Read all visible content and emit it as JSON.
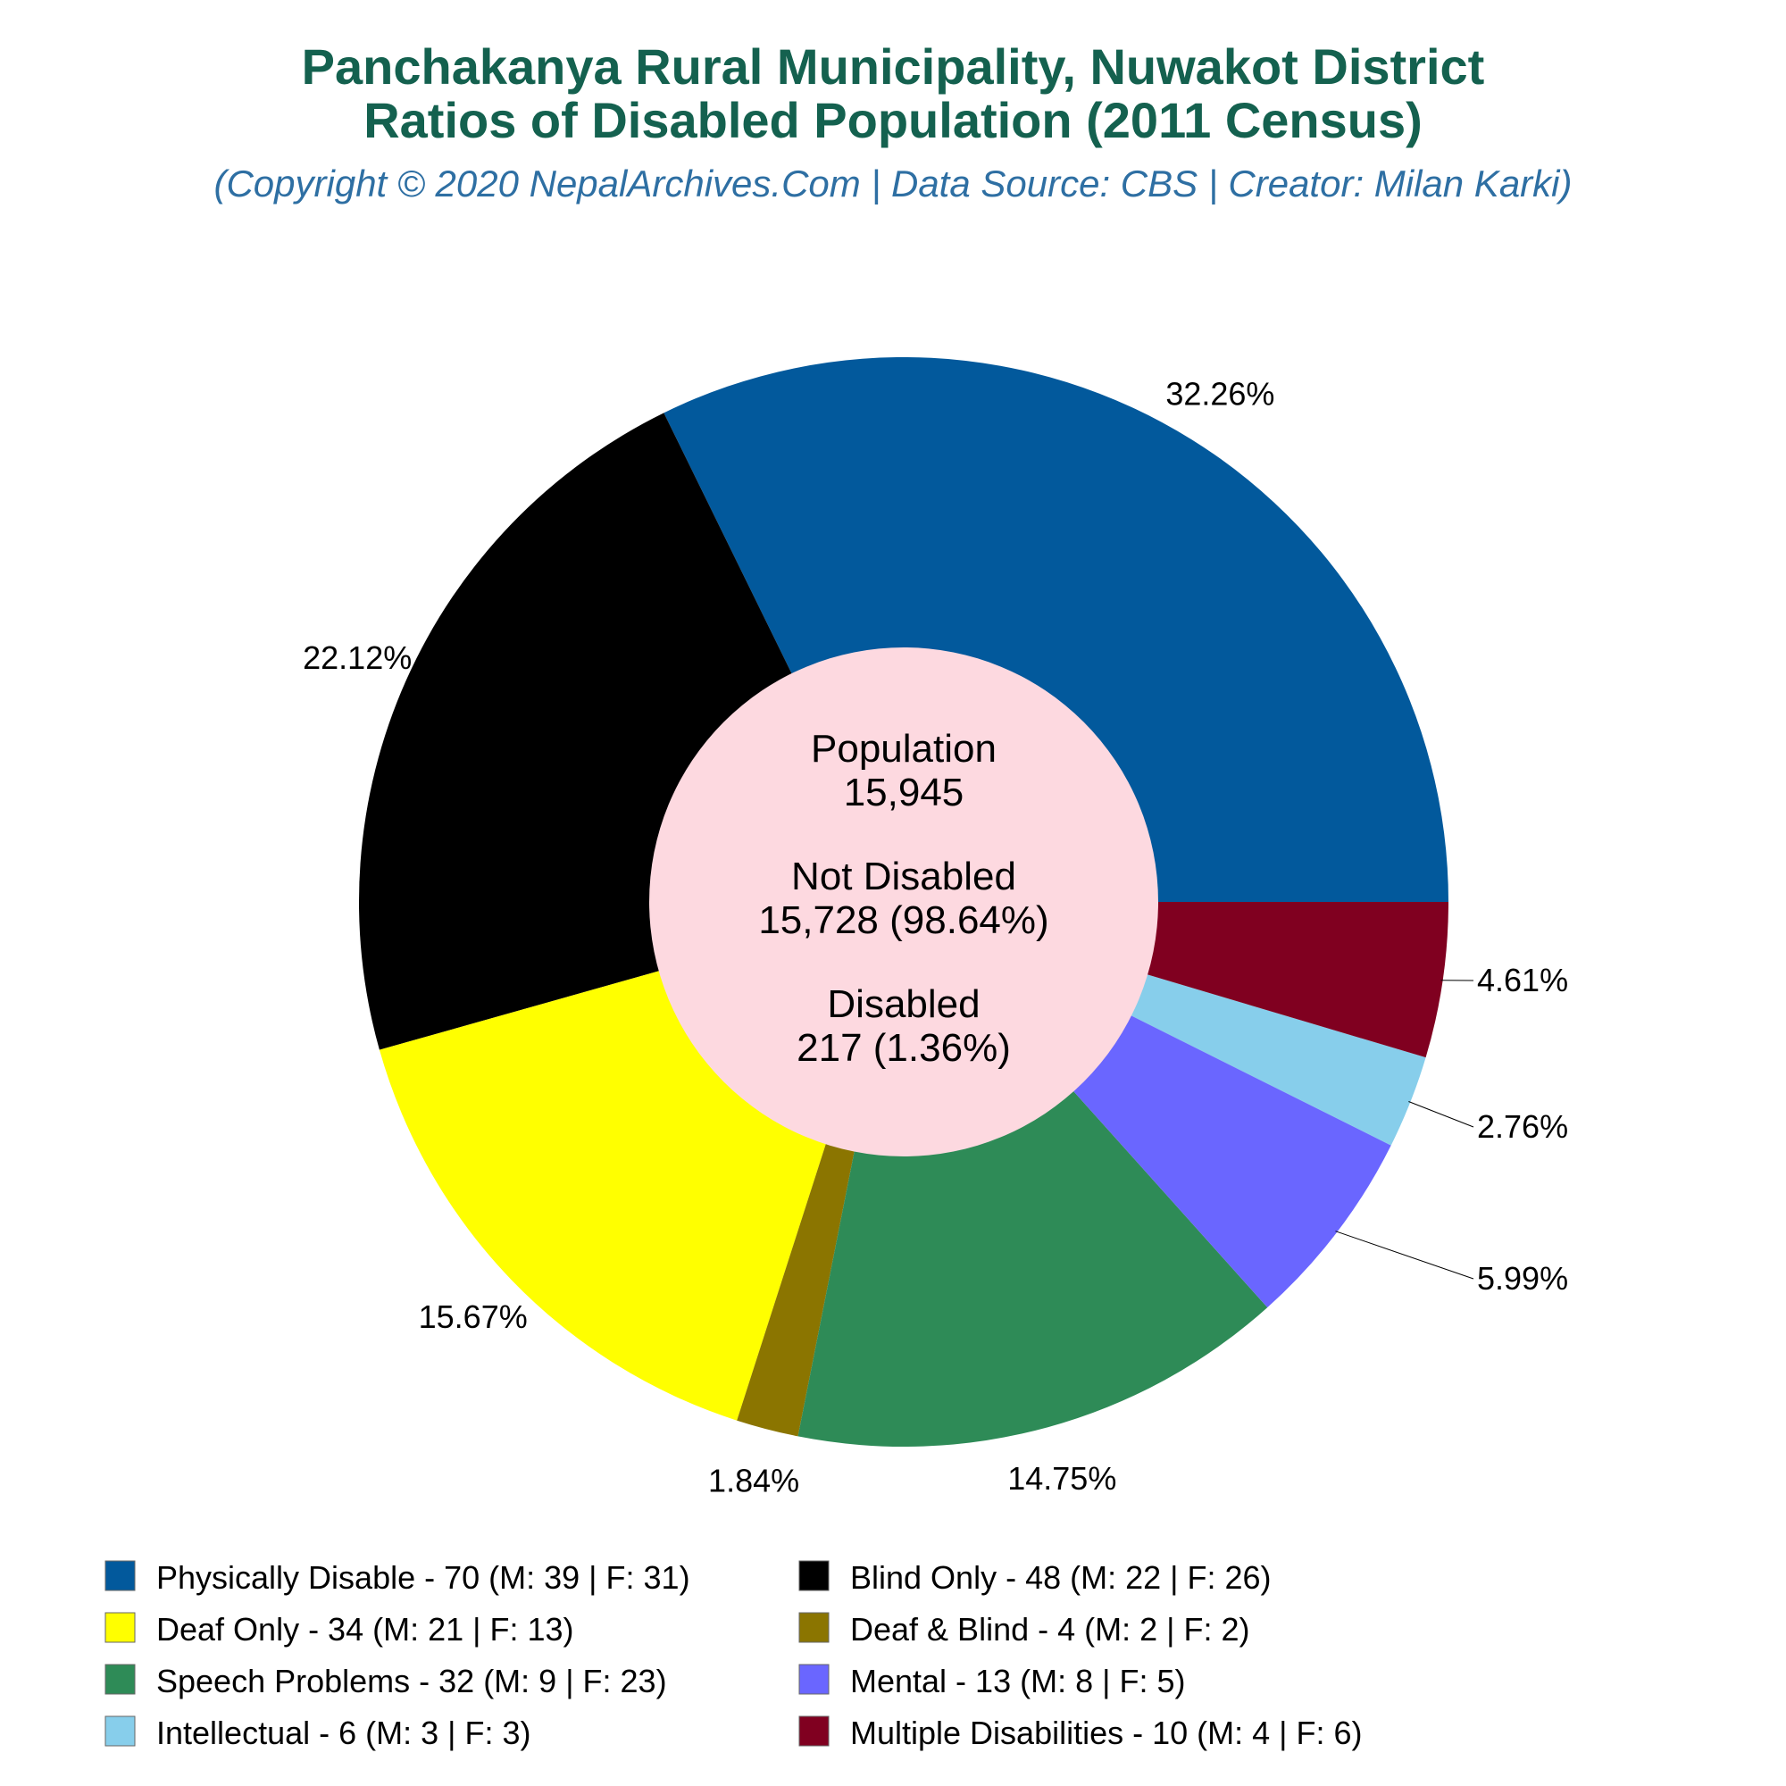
{
  "header": {
    "title_line1": "Panchakanya Rural Municipality, Nuwakot District",
    "title_line2": "Ratios of Disabled Population (2011 Census)",
    "subtitle": "(Copyright © 2020 NepalArchives.Com | Data Source: CBS | Creator: Milan Karki)"
  },
  "center": {
    "population_label": "Population",
    "population_value": "15,945",
    "not_disabled_label": "Not Disabled",
    "not_disabled_value": "15,728 (98.64%)",
    "disabled_label": "Disabled",
    "disabled_value": "217 (1.36%)",
    "fill": "#fdd9e0"
  },
  "chart_data": {
    "type": "pie",
    "title": "Panchakanya Rural Municipality, Nuwakot District Ratios of Disabled Population (2011 Census)",
    "categories": [
      "Physically Disable",
      "Blind Only",
      "Deaf Only",
      "Deaf & Blind",
      "Speech Problems",
      "Mental",
      "Intellectual",
      "Multiple Disabilities"
    ],
    "values": [
      70,
      48,
      34,
      4,
      32,
      13,
      6,
      10
    ],
    "percent_labels": [
      "32.26%",
      "22.12%",
      "15.67%",
      "1.84%",
      "14.75%",
      "5.99%",
      "2.76%",
      "4.61%"
    ],
    "colors": [
      "#02599c",
      "#000000",
      "#ffff00",
      "#8b7500",
      "#2e8b57",
      "#6a66ff",
      "#87ceeb",
      "#800020"
    ],
    "legend_entries": [
      "Physically Disable - 70 (M: 39 | F: 31)",
      "Blind Only - 48 (M: 22 | F: 26)",
      "Deaf Only - 34 (M: 21 | F: 13)",
      "Deaf & Blind - 4 (M: 2 | F: 2)",
      "Speech Problems - 32 (M: 9 | F: 23)",
      "Mental - 13 (M: 8 | F: 5)",
      "Intellectual - 6 (M: 3 | F: 3)",
      "Multiple Disabilities - 10 (M: 4 | F: 6)"
    ],
    "legend_placement": "bottom"
  }
}
